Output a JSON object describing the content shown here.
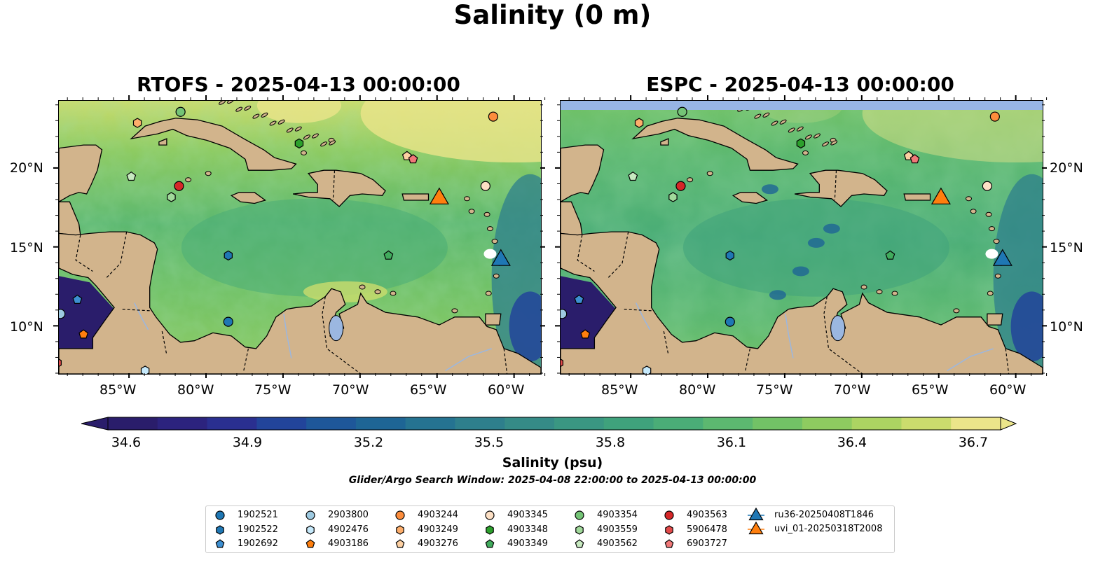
{
  "figure": {
    "suptitle": "Salinity (0 m)",
    "panels": [
      {
        "title": "RTOFS - 2025-04-13 00:00:00"
      },
      {
        "title": "ESPC - 2025-04-13 00:00:00"
      }
    ],
    "lon_ticks": [
      "85°W",
      "80°W",
      "75°W",
      "70°W",
      "65°W",
      "60°W"
    ],
    "lat_ticks": [
      "20°N",
      "15°N",
      "10°N"
    ],
    "colorbar": {
      "ticks": [
        "34.6",
        "34.9",
        "35.2",
        "35.5",
        "35.8",
        "36.1",
        "36.4",
        "36.7"
      ],
      "label": "Salinity (psu)",
      "min": 34.6,
      "max": 36.7,
      "colors": [
        "#2a1d6b",
        "#2c237e",
        "#2a2f90",
        "#22449a",
        "#1e5799",
        "#1e6595",
        "#257391",
        "#2e7f8c",
        "#358b87",
        "#3a9782",
        "#3fa27c",
        "#4aad77",
        "#5cb870",
        "#72c266",
        "#8ecb60",
        "#acd462",
        "#cbdc6d",
        "#ebe58a"
      ]
    },
    "search_window": "Glider/Argo Search Window: 2025-04-08 22:00:00 to 2025-04-13 00:00:00"
  },
  "legend": {
    "entries": [
      {
        "label": "1902521",
        "marker": "circle",
        "color": "#1f77b4"
      },
      {
        "label": "1902522",
        "marker": "hexagon",
        "color": "#1f77b4"
      },
      {
        "label": "1902692",
        "marker": "pentagon",
        "color": "#3d8fd1"
      },
      {
        "label": "2903800",
        "marker": "circle",
        "color": "#9ecae1"
      },
      {
        "label": "4902476",
        "marker": "hexagon",
        "color": "#c6e9fb"
      },
      {
        "label": "4903186",
        "marker": "pentagon",
        "color": "#ff7f0e"
      },
      {
        "label": "4903244",
        "marker": "circle",
        "color": "#fd8d3c"
      },
      {
        "label": "4903249",
        "marker": "hexagon",
        "color": "#fdae6b"
      },
      {
        "label": "4903276",
        "marker": "pentagon",
        "color": "#fdd0a2"
      },
      {
        "label": "4903345",
        "marker": "circle",
        "color": "#fde0c5"
      },
      {
        "label": "4903348",
        "marker": "hexagon",
        "color": "#2ca02c"
      },
      {
        "label": "4903349",
        "marker": "pentagon",
        "color": "#41ab5d"
      },
      {
        "label": "4903354",
        "marker": "circle",
        "color": "#74c476"
      },
      {
        "label": "4903559",
        "marker": "hexagon",
        "color": "#a1d99b"
      },
      {
        "label": "4903562",
        "marker": "pentagon",
        "color": "#c7e9c0"
      },
      {
        "label": "4903563",
        "marker": "circle",
        "color": "#d62728"
      },
      {
        "label": "5906478",
        "marker": "hexagon",
        "color": "#e34a4a"
      },
      {
        "label": "6903727",
        "marker": "pentagon",
        "color": "#f07878"
      },
      {
        "label": "ru36-20250408T1846",
        "marker": "triangle",
        "color": "#1f77b4"
      },
      {
        "label": "uvi_01-20250318T2008",
        "marker": "triangle",
        "color": "#ff7f0e"
      }
    ]
  },
  "floats": [
    {
      "id": "4903244",
      "lon": -61.4,
      "lat": 23.3
    },
    {
      "id": "4903249",
      "lon": -84.5,
      "lat": 22.9
    },
    {
      "id": "4903354",
      "lon": -81.7,
      "lat": 23.6
    },
    {
      "id": "4903348",
      "lon": -74.0,
      "lat": 21.6
    },
    {
      "id": "4903276",
      "lon": -67.0,
      "lat": 20.8
    },
    {
      "id": "6903727",
      "lon": -66.6,
      "lat": 20.6
    },
    {
      "id": "4903562",
      "lon": -84.9,
      "lat": 19.5
    },
    {
      "id": "4903563",
      "lon": -81.8,
      "lat": 18.9
    },
    {
      "id": "4903559",
      "lon": -82.3,
      "lat": 18.2
    },
    {
      "id": "4903345",
      "lon": -61.9,
      "lat": 18.9
    },
    {
      "id": "1902522",
      "lon": -78.6,
      "lat": 14.5
    },
    {
      "id": "4903349",
      "lon": -68.2,
      "lat": 14.5
    },
    {
      "id": "1902521",
      "lon": -78.6,
      "lat": 10.3
    },
    {
      "id": "2903800",
      "lon": -89.5,
      "lat": 10.8
    },
    {
      "id": "1902692",
      "lon": -88.4,
      "lat": 11.7
    },
    {
      "id": "4903186",
      "lon": -88.0,
      "lat": 9.5
    },
    {
      "id": "5906478",
      "lon": -89.7,
      "lat": 7.7
    },
    {
      "id": "4902476",
      "lon": -84.0,
      "lat": 7.2
    }
  ],
  "gliders": [
    {
      "id": "uvi_01-20250318T2008",
      "lon": -64.9,
      "lat": 18.1
    },
    {
      "id": "ru36-20250408T1846",
      "lon": -60.9,
      "lat": 14.2
    }
  ],
  "axes": {
    "lon_range": [
      -89.6,
      -58.3
    ],
    "lat_range": [
      7.0,
      24.3
    ]
  }
}
